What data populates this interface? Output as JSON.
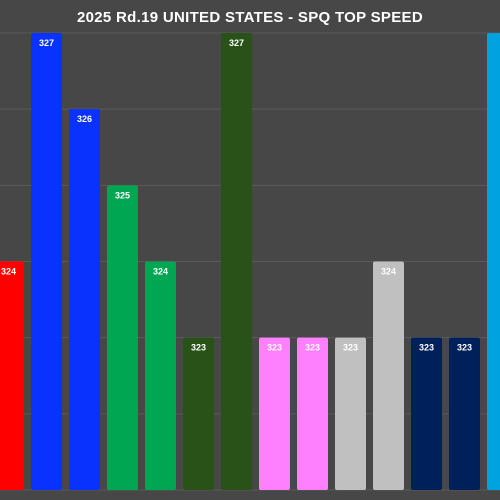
{
  "chart_data": {
    "type": "bar",
    "title": "2025 Rd.19 UNITED STATES - SPQ TOP SPEED",
    "xlabel": "",
    "ylabel": "",
    "ylim": [
      321,
      327
    ],
    "grid": true,
    "legend": "none",
    "values": [
      324,
      327,
      326,
      325,
      324,
      323,
      327,
      323,
      323,
      323,
      324,
      323,
      323,
      327
    ],
    "labels": [
      "324",
      "327",
      "326",
      "325",
      "324",
      "323",
      "327",
      "323",
      "323",
      "323",
      "324",
      "323",
      "323",
      ""
    ],
    "colors": [
      "#ff0000",
      "#0a32ff",
      "#0a32ff",
      "#00a651",
      "#00a651",
      "#285218",
      "#285218",
      "#ff80ff",
      "#ff80ff",
      "#c0c0c0",
      "#c0c0c0",
      "#00205b",
      "#00205b",
      "#00a3e0"
    ],
    "label_colors": [
      "#ffffff",
      "#ffffff",
      "#ffffff",
      "#ffffff",
      "#ffffff",
      "#ffffff",
      "#ffffff",
      "#ffffff",
      "#ffffff",
      "#ffffff",
      "#ffffff",
      "#ffffff",
      "#ffffff",
      "#ffffff"
    ]
  }
}
